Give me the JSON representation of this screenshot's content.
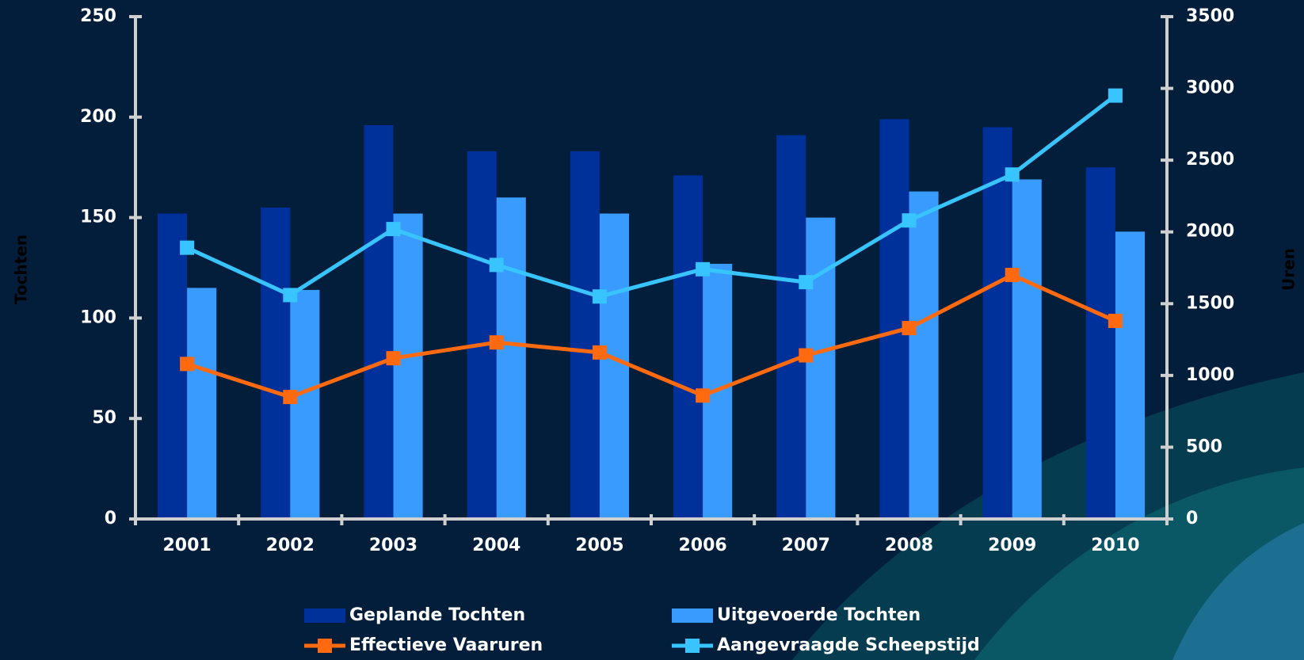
{
  "chart_data": {
    "type": "bar",
    "categories": [
      "2001",
      "2002",
      "2003",
      "2004",
      "2005",
      "2006",
      "2007",
      "2008",
      "2009",
      "2010"
    ],
    "y_label": "Tochten",
    "y2_label": "Uren",
    "ylim": [
      0,
      250
    ],
    "yticks": [
      0,
      50,
      100,
      150,
      200,
      250
    ],
    "y2lim": [
      0,
      3500
    ],
    "y2ticks": [
      0,
      500,
      1000,
      1500,
      2000,
      2500,
      3000,
      3500
    ],
    "series": [
      {
        "name": "Geplande Tochten",
        "type": "bar",
        "color": "#00309a",
        "values": [
          152,
          155,
          196,
          183,
          183,
          171,
          191,
          199,
          195,
          175
        ]
      },
      {
        "name": "Uitgevoerde Tochten",
        "type": "bar",
        "color": "#3a9bff",
        "values": [
          115,
          114,
          152,
          160,
          152,
          127,
          150,
          163,
          169,
          143
        ]
      },
      {
        "name": "Effectieve Vaaruren",
        "type": "line",
        "axis": "y2",
        "color": "#ff6a10",
        "values": [
          1080,
          850,
          1120,
          1230,
          1160,
          860,
          1140,
          1330,
          1700,
          1380
        ]
      },
      {
        "name": "Aangevraagde Scheepstijd",
        "type": "line",
        "axis": "y2",
        "color": "#38c4ff",
        "values": [
          1890,
          1560,
          2020,
          1770,
          1550,
          1740,
          1650,
          2080,
          2400,
          2950
        ]
      }
    ]
  }
}
